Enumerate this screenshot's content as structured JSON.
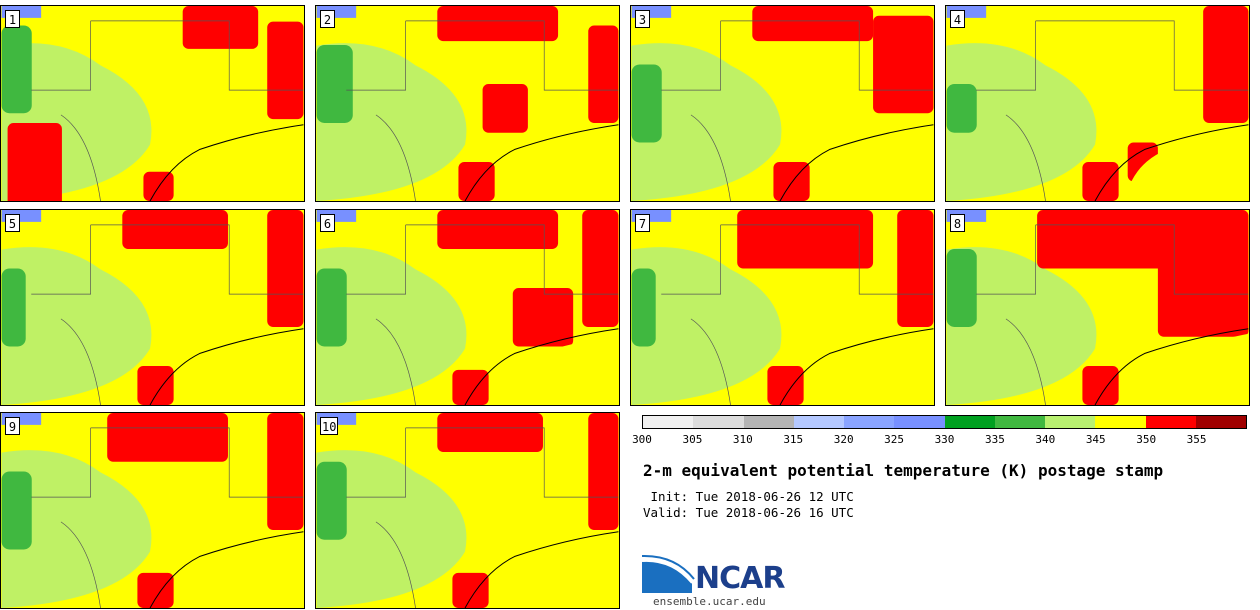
{
  "panels": [
    {
      "label": "1",
      "region": "SE",
      "cells": [
        [
          0.02,
          0.6,
          0.18,
          0.45
        ],
        [
          0.6,
          0.0,
          0.25,
          0.22
        ],
        [
          0.88,
          0.08,
          0.12,
          0.5
        ],
        [
          0.47,
          0.85,
          0.1,
          0.15
        ]
      ],
      "green": [
        [
          0.0,
          0.1,
          0.1,
          0.45
        ]
      ]
    },
    {
      "label": "2",
      "region": "SE",
      "cells": [
        [
          0.4,
          0.0,
          0.4,
          0.18
        ],
        [
          0.9,
          0.1,
          0.1,
          0.5
        ],
        [
          0.47,
          0.8,
          0.12,
          0.2
        ],
        [
          0.55,
          0.4,
          0.15,
          0.25
        ]
      ],
      "green": [
        [
          0.0,
          0.2,
          0.12,
          0.4
        ]
      ]
    },
    {
      "label": "3",
      "region": "SE",
      "cells": [
        [
          0.4,
          0.0,
          0.4,
          0.18
        ],
        [
          0.8,
          0.05,
          0.2,
          0.5
        ],
        [
          0.47,
          0.8,
          0.12,
          0.2
        ]
      ],
      "green": [
        [
          0.0,
          0.3,
          0.1,
          0.4
        ]
      ]
    },
    {
      "label": "4",
      "region": "SE",
      "cells": [
        [
          0.85,
          0.0,
          0.15,
          0.6
        ],
        [
          0.45,
          0.8,
          0.12,
          0.2
        ],
        [
          0.6,
          0.7,
          0.1,
          0.2
        ]
      ],
      "green": [
        [
          0.0,
          0.4,
          0.1,
          0.25
        ]
      ]
    },
    {
      "label": "5",
      "region": "SE",
      "cells": [
        [
          0.4,
          0.0,
          0.35,
          0.2
        ],
        [
          0.88,
          0.0,
          0.12,
          0.6
        ],
        [
          0.45,
          0.8,
          0.12,
          0.2
        ]
      ],
      "green": [
        [
          0.0,
          0.3,
          0.08,
          0.4
        ]
      ]
    },
    {
      "label": "6",
      "region": "SE",
      "cells": [
        [
          0.4,
          0.0,
          0.4,
          0.2
        ],
        [
          0.88,
          0.0,
          0.12,
          0.6
        ],
        [
          0.45,
          0.82,
          0.12,
          0.18
        ],
        [
          0.65,
          0.4,
          0.2,
          0.3
        ]
      ],
      "green": [
        [
          0.0,
          0.3,
          0.1,
          0.4
        ]
      ]
    },
    {
      "label": "7",
      "region": "SE",
      "cells": [
        [
          0.35,
          0.0,
          0.45,
          0.3
        ],
        [
          0.88,
          0.0,
          0.12,
          0.6
        ],
        [
          0.45,
          0.8,
          0.12,
          0.2
        ]
      ],
      "green": [
        [
          0.0,
          0.3,
          0.08,
          0.4
        ]
      ]
    },
    {
      "label": "8",
      "region": "SE",
      "cells": [
        [
          0.3,
          0.0,
          0.7,
          0.3
        ],
        [
          0.7,
          0.25,
          0.3,
          0.4
        ],
        [
          0.45,
          0.8,
          0.12,
          0.2
        ]
      ],
      "green": [
        [
          0.0,
          0.2,
          0.1,
          0.4
        ]
      ]
    },
    {
      "label": "9",
      "region": "SE",
      "cells": [
        [
          0.35,
          0.0,
          0.4,
          0.25
        ],
        [
          0.88,
          0.0,
          0.12,
          0.6
        ],
        [
          0.45,
          0.82,
          0.12,
          0.18
        ]
      ],
      "green": [
        [
          0.0,
          0.3,
          0.1,
          0.4
        ]
      ]
    },
    {
      "label": "10",
      "region": "SE",
      "cells": [
        [
          0.4,
          0.0,
          0.35,
          0.2
        ],
        [
          0.9,
          0.0,
          0.1,
          0.6
        ],
        [
          0.45,
          0.82,
          0.12,
          0.18
        ]
      ],
      "green": [
        [
          0.0,
          0.25,
          0.1,
          0.4
        ]
      ]
    }
  ],
  "colorbar": {
    "colors": [
      "#f0f0f0",
      "#dcdcdc",
      "#b4b4b4",
      "#b4c8ff",
      "#8aa4ff",
      "#7890ff",
      "#00a020",
      "#40b840",
      "#b8f070",
      "#ffff00",
      "#ff0000",
      "#a00000"
    ],
    "ticks": [
      "300",
      "305",
      "310",
      "315",
      "320",
      "325",
      "330",
      "335",
      "340",
      "345",
      "350",
      "355"
    ]
  },
  "title": "2-m equivalent potential temperature (K) postage stamp",
  "init": " Init: Tue 2018-06-26 12 UTC",
  "valid": "Valid: Tue 2018-06-26 16 UTC",
  "logo_text": "NCAR",
  "url": "ensemble.ucar.edu"
}
